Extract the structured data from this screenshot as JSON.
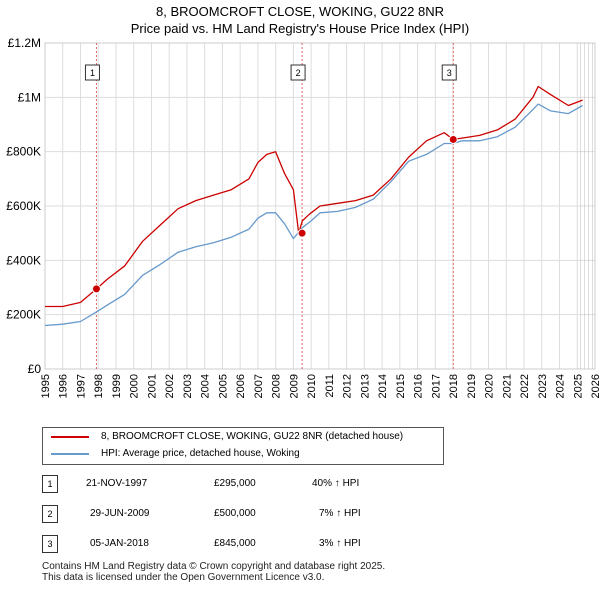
{
  "titles": {
    "line1": "8, BROOMCROFT CLOSE, WOKING, GU22 8NR",
    "line2": "Price paid vs. HM Land Registry's House Price Index (HPI)"
  },
  "chart_data": {
    "type": "line",
    "title": "8, BROOMCROFT CLOSE, WOKING, GU22 8NR — Price paid vs. HM Land Registry's House Price Index (HPI)",
    "xlabel": "",
    "ylabel": "",
    "xlim": [
      1995,
      2026
    ],
    "ylim": [
      0,
      1200000
    ],
    "x_ticks": [
      1995,
      1996,
      1997,
      1998,
      1999,
      2000,
      2001,
      2002,
      2003,
      2004,
      2005,
      2006,
      2007,
      2008,
      2009,
      2010,
      2011,
      2012,
      2013,
      2014,
      2015,
      2016,
      2017,
      2018,
      2019,
      2020,
      2021,
      2022,
      2023,
      2024,
      2025,
      2026
    ],
    "x_tick_labels": [
      "1995",
      "1996",
      "1997",
      "1998",
      "1999",
      "2000",
      "2001",
      "2002",
      "2003",
      "2004",
      "2005",
      "2006",
      "2007",
      "2008",
      "2009",
      "2010",
      "2011",
      "2012",
      "2013",
      "2014",
      "2015",
      "2016",
      "2017",
      "2018",
      "2019",
      "2020",
      "2021",
      "2022",
      "2023",
      "2024",
      "2025",
      "2026"
    ],
    "y_ticks": [
      0,
      200000,
      400000,
      600000,
      800000,
      1000000,
      1200000
    ],
    "y_tick_labels": [
      "£0",
      "£200K",
      "£400K",
      "£600K",
      "£800K",
      "£1M",
      "£1.2M"
    ],
    "grid": true,
    "hatch_from": 2025.1,
    "series": [
      {
        "name": "8, BROOMCROFT CLOSE, WOKING, GU22 8NR (detached house)",
        "color": "#cc0000",
        "x": [
          1995.0,
          1996.0,
          1997.0,
          1997.9,
          1998.5,
          1999.5,
          2000.5,
          2001.5,
          2002.5,
          2003.5,
          2004.5,
          2005.5,
          2006.5,
          2007.0,
          2007.5,
          2008.0,
          2008.5,
          2009.0,
          2009.3,
          2009.5,
          2009.9,
          2010.5,
          2011.5,
          2012.5,
          2013.5,
          2014.5,
          2015.5,
          2016.5,
          2017.5,
          2018.0,
          2018.5,
          2019.5,
          2020.5,
          2021.5,
          2022.5,
          2022.8,
          2023.5,
          2024.5,
          2025.3
        ],
        "y": [
          230000,
          230000,
          245000,
          295000,
          330000,
          380000,
          470000,
          530000,
          590000,
          620000,
          640000,
          660000,
          700000,
          760000,
          790000,
          800000,
          720000,
          660000,
          500000,
          545000,
          570000,
          600000,
          610000,
          620000,
          640000,
          700000,
          780000,
          840000,
          870000,
          845000,
          850000,
          860000,
          880000,
          920000,
          1000000,
          1040000,
          1010000,
          970000,
          990000
        ]
      },
      {
        "name": "HPI: Average price, detached house, Woking",
        "color": "#6699cc",
        "x": [
          1995.0,
          1996.0,
          1997.0,
          1997.9,
          1998.5,
          1999.5,
          2000.5,
          2001.5,
          2002.5,
          2003.5,
          2004.5,
          2005.5,
          2006.5,
          2007.0,
          2007.5,
          2008.0,
          2008.5,
          2009.0,
          2009.5,
          2010.0,
          2010.5,
          2011.5,
          2012.5,
          2013.5,
          2014.5,
          2015.5,
          2016.5,
          2017.5,
          2018.0,
          2018.5,
          2019.5,
          2020.5,
          2021.5,
          2022.5,
          2022.8,
          2023.5,
          2024.5,
          2025.3
        ],
        "y": [
          160000,
          165000,
          175000,
          210000,
          235000,
          275000,
          345000,
          385000,
          430000,
          450000,
          465000,
          485000,
          515000,
          555000,
          575000,
          575000,
          535000,
          480000,
          520000,
          545000,
          575000,
          580000,
          595000,
          625000,
          690000,
          765000,
          790000,
          830000,
          830000,
          840000,
          840000,
          855000,
          890000,
          955000,
          975000,
          950000,
          940000,
          970000
        ]
      }
    ],
    "annotations": [
      {
        "id": "1",
        "x": 1997.9,
        "y": 295000
      },
      {
        "id": "2",
        "x": 2009.49,
        "y": 500000
      },
      {
        "id": "3",
        "x": 2018.01,
        "y": 845000
      }
    ]
  },
  "legend": {
    "red_label": "8, BROOMCROFT CLOSE, WOKING, GU22 8NR (detached house)",
    "blue_label": "HPI: Average price, detached house, Woking"
  },
  "transactions": [
    {
      "num": "1",
      "date": "21-NOV-1997",
      "price": "£295,000",
      "hpi": "40% ↑ HPI"
    },
    {
      "num": "2",
      "date": "29-JUN-2009",
      "price": "£500,000",
      "hpi": "7% ↑ HPI"
    },
    {
      "num": "3",
      "date": "05-JAN-2018",
      "price": "£845,000",
      "hpi": "3% ↑ HPI"
    }
  ],
  "footer": {
    "line1": "Contains HM Land Registry data © Crown copyright and database right 2025.",
    "line2": "This data is licensed under the Open Government Licence v3.0."
  }
}
